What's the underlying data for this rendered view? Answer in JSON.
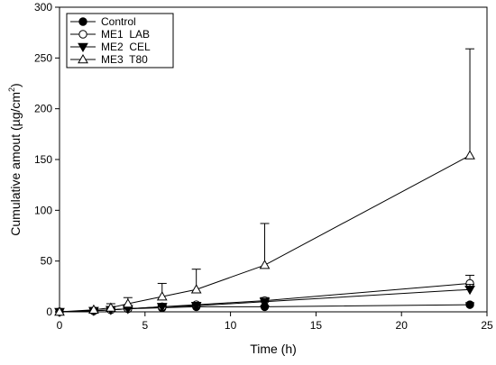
{
  "chart_data": {
    "type": "line",
    "title": "",
    "xlabel": "Time (h)",
    "ylabel": "Cumulative amout (µg/cm²)",
    "ylabel_parts": {
      "main": "Cumulative amout (µg/cm",
      "sup": "2",
      "end": ")"
    },
    "xlim": [
      0,
      25
    ],
    "ylim": [
      0,
      300
    ],
    "xticks": [
      0,
      5,
      10,
      15,
      20,
      25
    ],
    "yticks": [
      0,
      50,
      100,
      150,
      200,
      250,
      300
    ],
    "grid": false,
    "legend_position": "top-left",
    "x": [
      0,
      2,
      3,
      4,
      6,
      8,
      12,
      24
    ],
    "series": [
      {
        "name": "Control",
        "marker": "filled-circle",
        "values": [
          0,
          1,
          2,
          3,
          4,
          5,
          5,
          7
        ],
        "error": [
          0,
          0.5,
          0.5,
          0.5,
          1,
          1,
          1,
          2
        ]
      },
      {
        "name": "ME1  LAB",
        "marker": "open-circle",
        "values": [
          0,
          1,
          2,
          3,
          5,
          7,
          11,
          28
        ],
        "error": [
          0,
          0.5,
          1,
          1,
          2,
          2,
          3,
          8
        ]
      },
      {
        "name": "ME2  CEL",
        "marker": "filled-triangle-down",
        "values": [
          0,
          1,
          2,
          3,
          5,
          6,
          10,
          22
        ],
        "error": [
          0,
          0.5,
          1,
          1,
          1,
          2,
          3,
          5
        ]
      },
      {
        "name": "ME3  T80",
        "marker": "open-triangle-up",
        "values": [
          0,
          2,
          4,
          8,
          15,
          22,
          46,
          154
        ],
        "error": [
          0,
          1,
          4,
          6,
          13,
          20,
          41,
          105
        ]
      }
    ],
    "colors": {
      "line": "#000000",
      "background": "#ffffff"
    }
  }
}
